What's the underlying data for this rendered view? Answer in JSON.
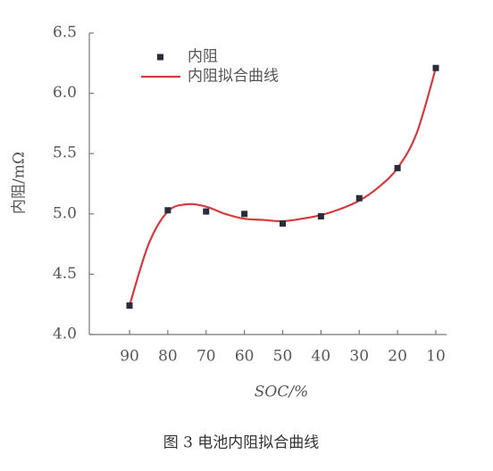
{
  "chart_data": {
    "type": "scatter",
    "xlabel": "SOC/%",
    "ylabel": "内阻/mΩ",
    "caption": "图 3    电池内阻拟合曲线",
    "xlim": [
      100.5,
      7.2
    ],
    "ylim": [
      4.0,
      6.5
    ],
    "xticks": [
      90,
      80,
      70,
      60,
      50,
      40,
      30,
      20,
      10
    ],
    "yticks": [
      {
        "value": 4,
        "label": "4.0"
      },
      4.5,
      {
        "value": 5,
        "label": "5.0"
      },
      5.5,
      {
        "value": 6,
        "label": "6.0"
      },
      6.5
    ],
    "series": [
      {
        "name": "内阻",
        "type": "scatter",
        "color": "#2a2c3c",
        "x": [
          90,
          80,
          70,
          60,
          50,
          40,
          30,
          20,
          10
        ],
        "values": [
          4.24,
          5.03,
          5.02,
          5.0,
          4.92,
          4.98,
          5.13,
          5.38,
          6.21
        ]
      },
      {
        "name": "内阻拟合曲线",
        "type": "line",
        "color": "#d63a3c",
        "x": [
          90,
          85,
          80,
          75,
          70,
          65,
          60,
          55,
          50,
          45,
          40,
          35,
          30,
          25,
          20,
          15,
          10
        ],
        "values": [
          4.24,
          4.75,
          5.02,
          5.08,
          5.06,
          5.0,
          4.96,
          4.95,
          4.94,
          4.96,
          4.99,
          5.04,
          5.11,
          5.22,
          5.38,
          5.67,
          6.21
        ]
      }
    ]
  }
}
